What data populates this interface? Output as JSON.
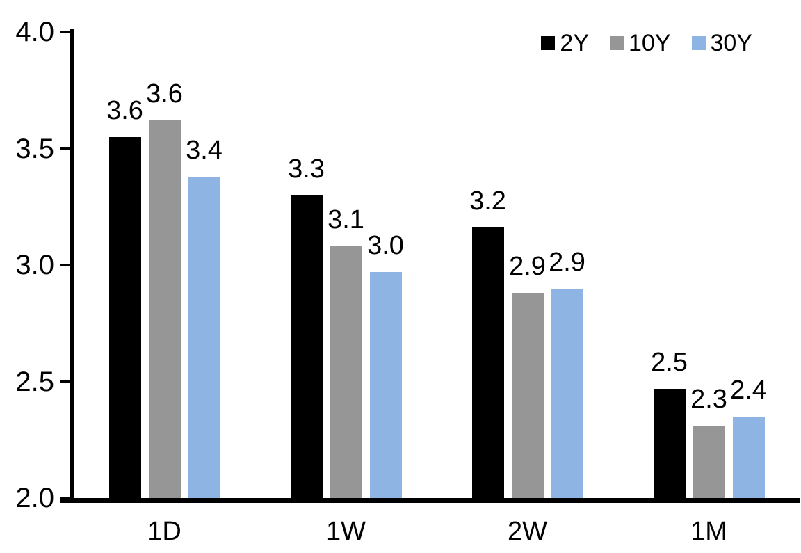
{
  "chart_data": {
    "type": "bar",
    "title": "",
    "xlabel": "",
    "ylabel": "",
    "categories": [
      "1D",
      "1W",
      "2W",
      "1M"
    ],
    "series": [
      {
        "name": "2Y",
        "color": "#000000",
        "values": [
          3.55,
          3.3,
          3.16,
          2.47
        ],
        "labels": [
          "3.6",
          "3.3",
          "3.2",
          "2.5"
        ]
      },
      {
        "name": "10Y",
        "color": "#969696",
        "values": [
          3.62,
          3.08,
          2.88,
          2.31
        ],
        "labels": [
          "3.6",
          "3.1",
          "2.9",
          "2.3"
        ]
      },
      {
        "name": "30Y",
        "color": "#8DB4E2",
        "values": [
          3.38,
          2.97,
          2.9,
          2.35
        ],
        "labels": [
          "3.4",
          "3.0",
          "2.9",
          "2.4"
        ]
      }
    ],
    "ylim": [
      2.0,
      4.0
    ],
    "yticks": [
      "2.0",
      "2.5",
      "3.0",
      "3.5",
      "4.0"
    ],
    "grid": false,
    "legend_position": "top-right",
    "axis_color": "#000000",
    "background": "#FFFFFF"
  }
}
